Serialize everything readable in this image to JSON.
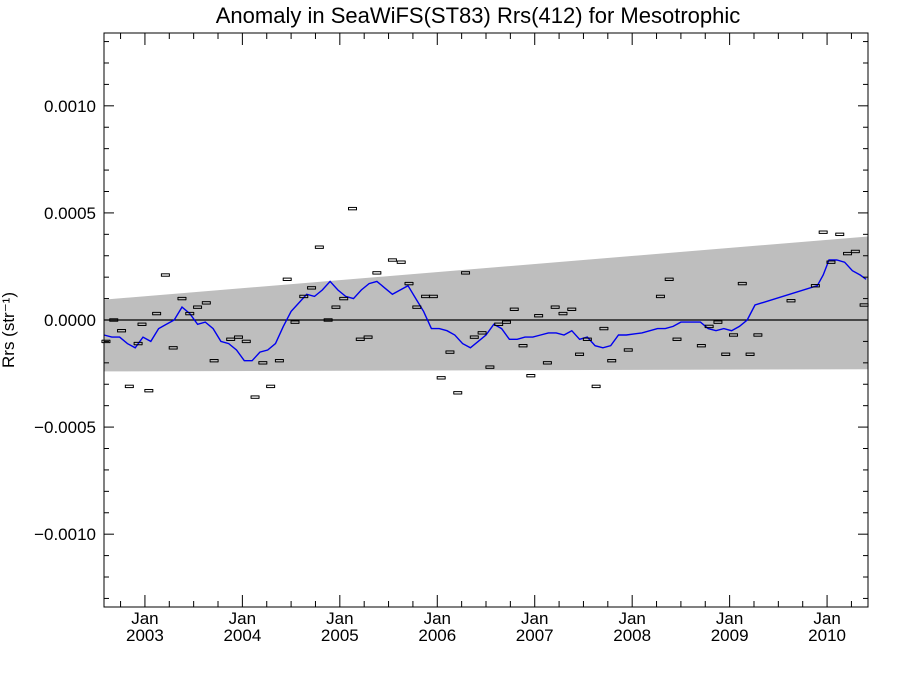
{
  "chart_data": {
    "type": "scatter",
    "title": "Anomaly in SeaWiFS(ST83) Rrs(412) for Mesotrophic",
    "ylabel": "Rrs (str⁻¹)",
    "xlabel": "",
    "xlim": [
      2002.58,
      2010.42
    ],
    "ylim": [
      -0.00134,
      0.00134
    ],
    "y_ticks": [
      {
        "value": 0.001,
        "label": "0.0010"
      },
      {
        "value": 0.0005,
        "label": "0.0005"
      },
      {
        "value": 0.0,
        "label": "0.0000"
      },
      {
        "value": -0.0005,
        "label": "−0.0005"
      },
      {
        "value": -0.001,
        "label": "−0.0010"
      }
    ],
    "x_ticks": [
      {
        "value": 2003.0,
        "month": "Jan",
        "year": "2003"
      },
      {
        "value": 2004.0,
        "month": "Jan",
        "year": "2004"
      },
      {
        "value": 2005.0,
        "month": "Jan",
        "year": "2005"
      },
      {
        "value": 2006.0,
        "month": "Jan",
        "year": "2006"
      },
      {
        "value": 2007.0,
        "month": "Jan",
        "year": "2007"
      },
      {
        "value": 2008.0,
        "month": "Jan",
        "year": "2008"
      },
      {
        "value": 2009.0,
        "month": "Jan",
        "year": "2009"
      },
      {
        "value": 2010.0,
        "month": "Jan",
        "year": "2010"
      }
    ],
    "band": {
      "x": [
        2002.58,
        2010.42
      ],
      "upper": [
        9.5e-05,
        0.00039
      ],
      "lower": [
        -0.00024,
        -0.00023
      ]
    },
    "reference_line": 0.0,
    "points": [
      {
        "x": 2002.6,
        "y": -0.0001
      },
      {
        "x": 2002.68,
        "y": 0.0
      },
      {
        "x": 2002.76,
        "y": -5e-05
      },
      {
        "x": 2002.84,
        "y": -0.00031
      },
      {
        "x": 2002.93,
        "y": -0.00011
      },
      {
        "x": 2002.97,
        "y": -2e-05
      },
      {
        "x": 2003.04,
        "y": -0.00033
      },
      {
        "x": 2003.12,
        "y": 3e-05
      },
      {
        "x": 2003.21,
        "y": 0.00021
      },
      {
        "x": 2003.29,
        "y": -0.00013
      },
      {
        "x": 2003.38,
        "y": 0.0001
      },
      {
        "x": 2003.46,
        "y": 3e-05
      },
      {
        "x": 2003.54,
        "y": 6e-05
      },
      {
        "x": 2003.63,
        "y": 8e-05
      },
      {
        "x": 2003.71,
        "y": -0.00019
      },
      {
        "x": 2003.88,
        "y": -9e-05
      },
      {
        "x": 2003.96,
        "y": -8e-05
      },
      {
        "x": 2004.04,
        "y": -0.0001
      },
      {
        "x": 2004.13,
        "y": -0.00036
      },
      {
        "x": 2004.21,
        "y": -0.0002
      },
      {
        "x": 2004.29,
        "y": -0.00031
      },
      {
        "x": 2004.38,
        "y": -0.00019
      },
      {
        "x": 2004.46,
        "y": 0.00019
      },
      {
        "x": 2004.54,
        "y": -1e-05
      },
      {
        "x": 2004.63,
        "y": 0.00011
      },
      {
        "x": 2004.71,
        "y": 0.00015
      },
      {
        "x": 2004.79,
        "y": 0.00034
      },
      {
        "x": 2004.88,
        "y": 0.0
      },
      {
        "x": 2004.96,
        "y": 6e-05
      },
      {
        "x": 2005.04,
        "y": 0.0001
      },
      {
        "x": 2005.13,
        "y": 0.00052
      },
      {
        "x": 2005.21,
        "y": -9e-05
      },
      {
        "x": 2005.29,
        "y": -8e-05
      },
      {
        "x": 2005.38,
        "y": 0.00022
      },
      {
        "x": 2005.54,
        "y": 0.00028
      },
      {
        "x": 2005.63,
        "y": 0.00027
      },
      {
        "x": 2005.71,
        "y": 0.00017
      },
      {
        "x": 2005.79,
        "y": 6e-05
      },
      {
        "x": 2005.88,
        "y": 0.00011
      },
      {
        "x": 2005.96,
        "y": 0.00011
      },
      {
        "x": 2006.04,
        "y": -0.00027
      },
      {
        "x": 2006.13,
        "y": -0.00015
      },
      {
        "x": 2006.21,
        "y": -0.00034
      },
      {
        "x": 2006.29,
        "y": 0.00022
      },
      {
        "x": 2006.38,
        "y": -8e-05
      },
      {
        "x": 2006.46,
        "y": -6e-05
      },
      {
        "x": 2006.54,
        "y": -0.00022
      },
      {
        "x": 2006.63,
        "y": -2e-05
      },
      {
        "x": 2006.71,
        "y": -1e-05
      },
      {
        "x": 2006.79,
        "y": 5e-05
      },
      {
        "x": 2006.88,
        "y": -0.00012
      },
      {
        "x": 2006.96,
        "y": -0.00026
      },
      {
        "x": 2007.04,
        "y": 2e-05
      },
      {
        "x": 2007.13,
        "y": -0.0002
      },
      {
        "x": 2007.21,
        "y": 6e-05
      },
      {
        "x": 2007.29,
        "y": 3e-05
      },
      {
        "x": 2007.38,
        "y": 5e-05
      },
      {
        "x": 2007.46,
        "y": -0.00016
      },
      {
        "x": 2007.54,
        "y": -9e-05
      },
      {
        "x": 2007.63,
        "y": -0.00031
      },
      {
        "x": 2007.71,
        "y": -4e-05
      },
      {
        "x": 2007.79,
        "y": -0.00019
      },
      {
        "x": 2007.96,
        "y": -0.00014
      },
      {
        "x": 2008.29,
        "y": 0.00011
      },
      {
        "x": 2008.38,
        "y": 0.00019
      },
      {
        "x": 2008.46,
        "y": -9e-05
      },
      {
        "x": 2008.71,
        "y": -0.00012
      },
      {
        "x": 2008.79,
        "y": -3e-05
      },
      {
        "x": 2008.88,
        "y": -1e-05
      },
      {
        "x": 2008.96,
        "y": -0.00016
      },
      {
        "x": 2009.04,
        "y": -7e-05
      },
      {
        "x": 2009.13,
        "y": 0.00017
      },
      {
        "x": 2009.21,
        "y": -0.00016
      },
      {
        "x": 2009.29,
        "y": -7e-05
      },
      {
        "x": 2009.63,
        "y": 9e-05
      },
      {
        "x": 2009.88,
        "y": 0.00016
      },
      {
        "x": 2009.96,
        "y": 0.00041
      },
      {
        "x": 2010.04,
        "y": 0.00027
      },
      {
        "x": 2010.13,
        "y": 0.0004
      },
      {
        "x": 2010.21,
        "y": 0.00031
      },
      {
        "x": 2010.29,
        "y": 0.00032
      },
      {
        "x": 2010.38,
        "y": 7e-05
      }
    ],
    "smooth_line": {
      "color": "#0000ee",
      "points": [
        [
          2002.58,
          -7e-05
        ],
        [
          2002.66,
          -8e-05
        ],
        [
          2002.74,
          -8e-05
        ],
        [
          2002.82,
          -0.00011
        ],
        [
          2002.9,
          -0.00013
        ],
        [
          2002.98,
          -8e-05
        ],
        [
          2003.06,
          -0.0001
        ],
        [
          2003.14,
          -4e-05
        ],
        [
          2003.22,
          -2e-05
        ],
        [
          2003.3,
          -0.0
        ],
        [
          2003.38,
          6e-05
        ],
        [
          2003.46,
          3e-05
        ],
        [
          2003.54,
          -2e-05
        ],
        [
          2003.62,
          -1e-05
        ],
        [
          2003.7,
          -4e-05
        ],
        [
          2003.78,
          -0.0001
        ],
        [
          2003.86,
          -0.00011
        ],
        [
          2003.94,
          -0.00014
        ],
        [
          2004.02,
          -0.00019
        ],
        [
          2004.1,
          -0.00019
        ],
        [
          2004.18,
          -0.00015
        ],
        [
          2004.26,
          -0.00014
        ],
        [
          2004.34,
          -0.00011
        ],
        [
          2004.42,
          -3e-05
        ],
        [
          2004.5,
          4e-05
        ],
        [
          2004.58,
          8e-05
        ],
        [
          2004.66,
          0.00012
        ],
        [
          2004.74,
          0.00011
        ],
        [
          2004.82,
          0.00014
        ],
        [
          2004.9,
          0.00018
        ],
        [
          2004.98,
          0.00014
        ],
        [
          2005.06,
          0.00011
        ],
        [
          2005.14,
          0.0001
        ],
        [
          2005.22,
          0.00014
        ],
        [
          2005.3,
          0.00017
        ],
        [
          2005.38,
          0.00018
        ],
        [
          2005.46,
          0.00015
        ],
        [
          2005.54,
          0.00012
        ],
        [
          2005.62,
          0.00014
        ],
        [
          2005.7,
          0.00016
        ],
        [
          2005.78,
          0.0001
        ],
        [
          2005.86,
          4e-05
        ],
        [
          2005.94,
          -4e-05
        ],
        [
          2006.02,
          -4e-05
        ],
        [
          2006.1,
          -5e-05
        ],
        [
          2006.18,
          -7e-05
        ],
        [
          2006.26,
          -0.00011
        ],
        [
          2006.34,
          -0.00013
        ],
        [
          2006.42,
          -0.0001
        ],
        [
          2006.5,
          -7e-05
        ],
        [
          2006.58,
          -2e-05
        ],
        [
          2006.66,
          -4e-05
        ],
        [
          2006.74,
          -9e-05
        ],
        [
          2006.82,
          -9e-05
        ],
        [
          2006.9,
          -8e-05
        ],
        [
          2006.98,
          -8e-05
        ],
        [
          2007.06,
          -7e-05
        ],
        [
          2007.14,
          -6e-05
        ],
        [
          2007.22,
          -6e-05
        ],
        [
          2007.3,
          -7e-05
        ],
        [
          2007.38,
          -5e-05
        ],
        [
          2007.46,
          -9e-05
        ],
        [
          2007.54,
          -8e-05
        ],
        [
          2007.62,
          -0.00012
        ],
        [
          2007.7,
          -0.00013
        ],
        [
          2007.78,
          -0.00012
        ],
        [
          2007.86,
          -7e-05
        ],
        [
          2007.94,
          -7e-05
        ],
        [
          2008.1,
          -6e-05
        ],
        [
          2008.26,
          -4e-05
        ],
        [
          2008.34,
          -4e-05
        ],
        [
          2008.42,
          -3e-05
        ],
        [
          2008.5,
          -1e-05
        ],
        [
          2008.7,
          -1e-05
        ],
        [
          2008.78,
          -4e-05
        ],
        [
          2008.86,
          -5e-05
        ],
        [
          2008.94,
          -4e-05
        ],
        [
          2009.02,
          -5e-05
        ],
        [
          2009.1,
          -3e-05
        ],
        [
          2009.18,
          0.0
        ],
        [
          2009.26,
          7e-05
        ],
        [
          2009.9,
          0.00016
        ],
        [
          2009.96,
          0.00021
        ],
        [
          2010.02,
          0.00028
        ],
        [
          2010.1,
          0.00028
        ],
        [
          2010.18,
          0.00027
        ],
        [
          2010.26,
          0.00023
        ],
        [
          2010.34,
          0.00021
        ],
        [
          2010.4,
          0.00019
        ]
      ]
    },
    "colors": {
      "band": "#bebebe",
      "line": "#0000ee",
      "points": "#000000",
      "reference": "#000000"
    },
    "grid": false,
    "legend": "none"
  }
}
